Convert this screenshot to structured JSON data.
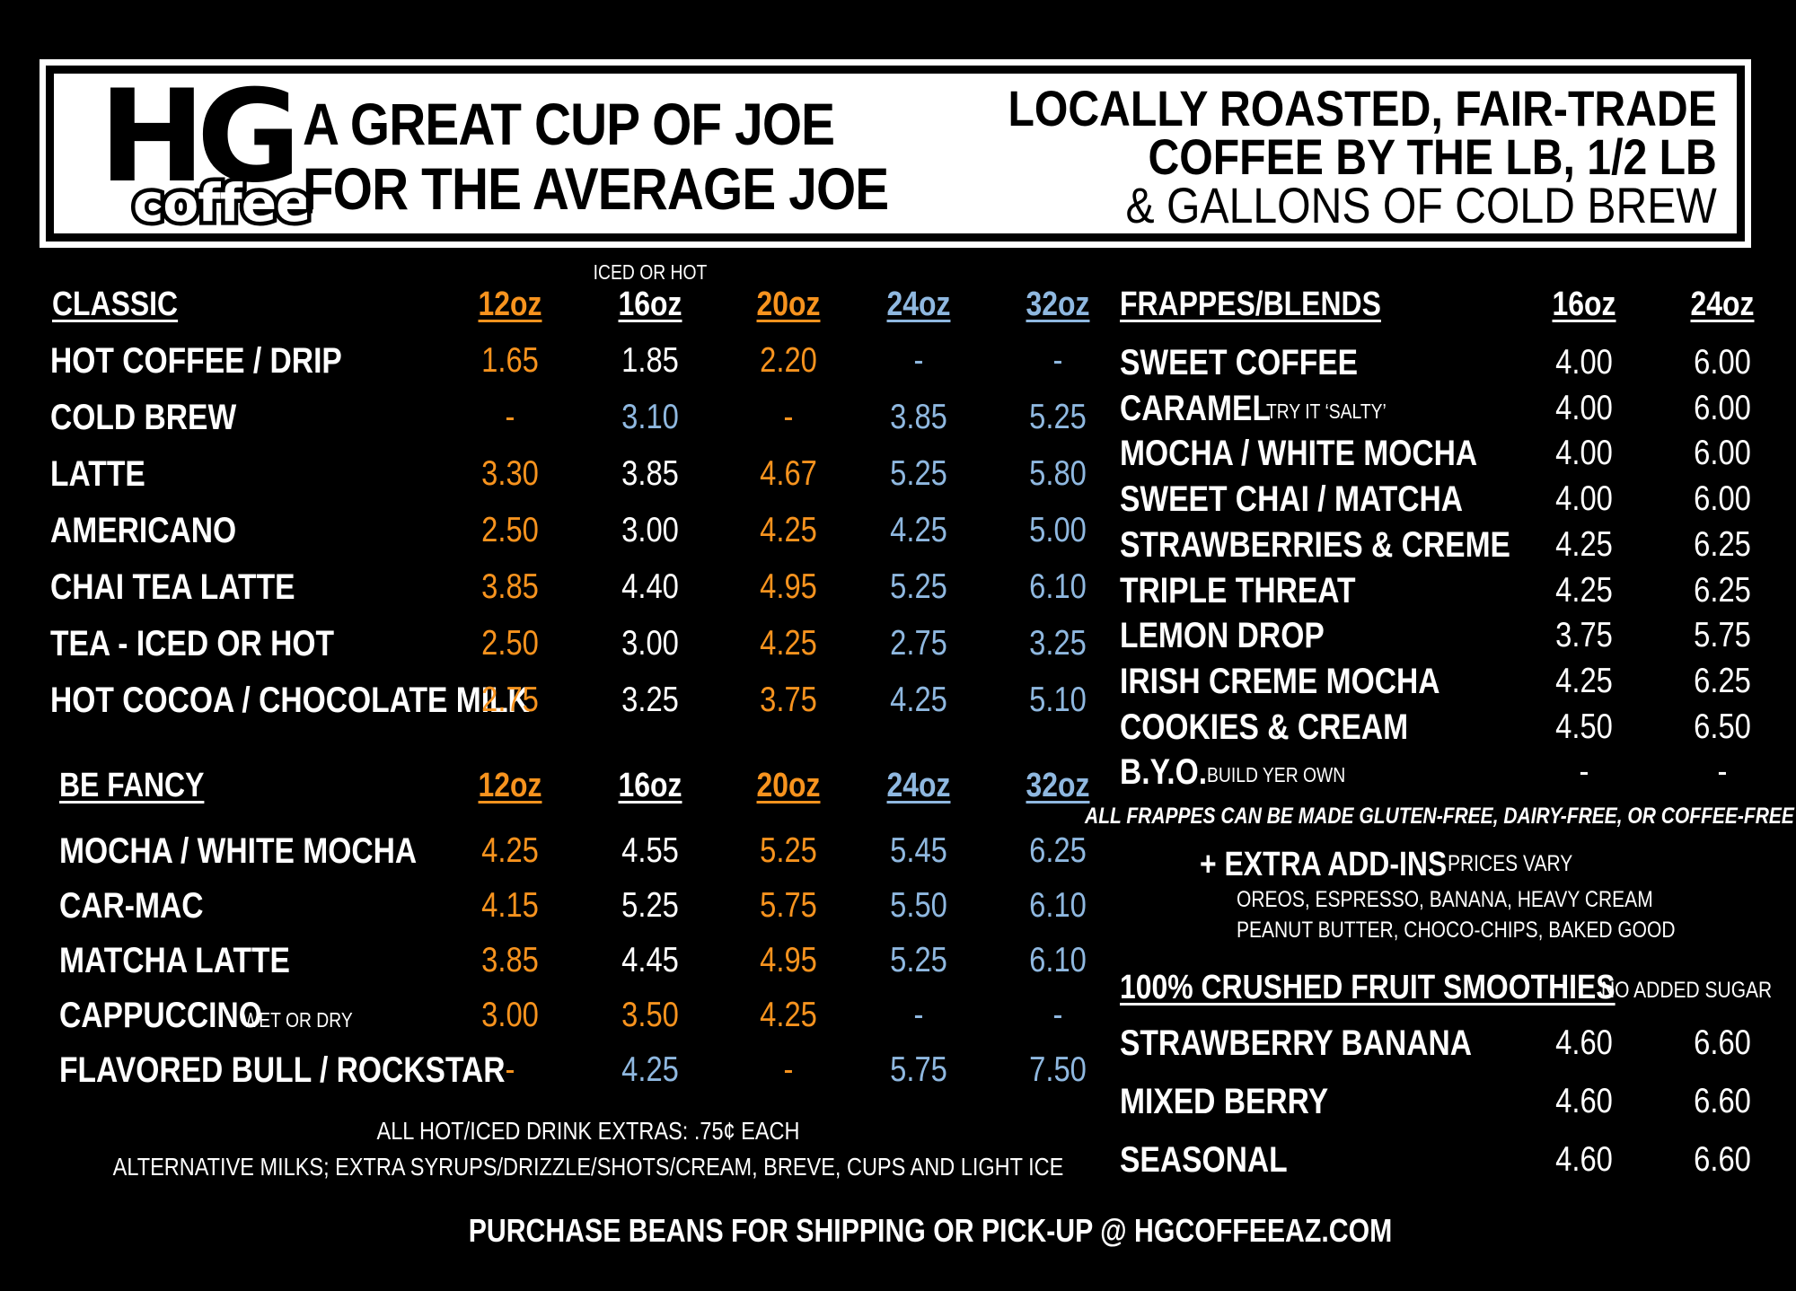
{
  "header": {
    "logo_top": "HG",
    "logo_bottom": "coffee",
    "tagline": [
      "A GREAT CUP OF JOE",
      "FOR THE AVERAGE JOE"
    ],
    "right": [
      "LOCALLY ROASTED, FAIR-TRADE",
      "COFFEE BY THE LB, 1/2 LB",
      "& GALLONS OF COLD BREW"
    ]
  },
  "classic": {
    "title": "CLASSIC",
    "note_above": "ICED OR HOT",
    "sizes": [
      "12oz",
      "16oz",
      "20oz",
      "24oz",
      "32oz"
    ],
    "size_colors": [
      "#f7931e",
      "#ffffff",
      "#f7931e",
      "#8fb8e0",
      "#8fb8e0"
    ],
    "rows": [
      {
        "name": "HOT COFFEE / DRIP",
        "prices": [
          "1.65",
          "1.85",
          "2.20",
          "-",
          "-"
        ]
      },
      {
        "name": "COLD BREW",
        "prices": [
          "-",
          "3.10",
          "-",
          "3.85",
          "5.25"
        ]
      },
      {
        "name": "LATTE",
        "prices": [
          "3.30",
          "3.85",
          "4.67",
          "5.25",
          "5.80"
        ]
      },
      {
        "name": "AMERICANO",
        "prices": [
          "2.50",
          "3.00",
          "4.25",
          "4.25",
          "5.00"
        ]
      },
      {
        "name": "CHAI TEA LATTE",
        "prices": [
          "3.85",
          "4.40",
          "4.95",
          "5.25",
          "6.10"
        ]
      },
      {
        "name": "TEA - ICED OR HOT",
        "prices": [
          "2.50",
          "3.00",
          "4.25",
          "2.75",
          "3.25"
        ]
      },
      {
        "name": "HOT COCOA / CHOCOLATE MILK",
        "prices": [
          "2.75",
          "3.25",
          "3.75",
          "4.25",
          "5.10"
        ]
      }
    ]
  },
  "fancy": {
    "title": "BE FANCY",
    "sizes": [
      "12oz",
      "16oz",
      "20oz",
      "24oz",
      "32oz"
    ],
    "rows": [
      {
        "name": "MOCHA / WHITE MOCHA",
        "note": "",
        "prices": [
          "4.25",
          "4.55",
          "5.25",
          "5.45",
          "6.25"
        ]
      },
      {
        "name": "CAR-MAC",
        "note": "",
        "prices": [
          "4.15",
          "5.25",
          "5.75",
          "5.50",
          "6.10"
        ]
      },
      {
        "name": "MATCHA LATTE",
        "note": "",
        "prices": [
          "3.85",
          "4.45",
          "4.95",
          "5.25",
          "6.10"
        ]
      },
      {
        "name": "CAPPUCCINO",
        "note": "WET OR DRY",
        "prices": [
          "3.00",
          "3.50",
          "4.25",
          "-",
          "-"
        ]
      },
      {
        "name": "FLAVORED BULL / ROCKSTAR",
        "note": "",
        "prices": [
          "-",
          "4.25",
          "-",
          "5.75",
          "7.50"
        ]
      }
    ]
  },
  "extras": {
    "line1": "ALL HOT/ICED DRINK EXTRAS: .75¢ EACH",
    "line2": "ALTERNATIVE MILKS; EXTRA SYRUPS/DRIZZLE/SHOTS/CREAM, BREVE, CUPS AND LIGHT ICE"
  },
  "frappes": {
    "title": "FRAPPES/BLENDS",
    "sizes": [
      "16oz",
      "24oz"
    ],
    "rows": [
      {
        "name": "SWEET COFFEE",
        "note": "",
        "prices": [
          "4.00",
          "6.00"
        ]
      },
      {
        "name": "CARAMEL",
        "note": "TRY IT ‘SALTY’",
        "prices": [
          "4.00",
          "6.00"
        ]
      },
      {
        "name": "MOCHA / WHITE MOCHA",
        "note": "",
        "prices": [
          "4.00",
          "6.00"
        ]
      },
      {
        "name": "SWEET CHAI / MATCHA",
        "note": "",
        "prices": [
          "4.00",
          "6.00"
        ]
      },
      {
        "name": "STRAWBERRIES & CREME",
        "note": "",
        "prices": [
          "4.25",
          "6.25"
        ]
      },
      {
        "name": "TRIPLE THREAT",
        "note": "",
        "prices": [
          "4.25",
          "6.25"
        ]
      },
      {
        "name": "LEMON DROP",
        "note": "",
        "prices": [
          "3.75",
          "5.75"
        ]
      },
      {
        "name": "IRISH CREME MOCHA",
        "note": "",
        "prices": [
          "4.25",
          "6.25"
        ]
      },
      {
        "name": "COOKIES & CREAM",
        "note": "",
        "prices": [
          "4.50",
          "6.50"
        ]
      },
      {
        "name": "B.Y.O.",
        "note": "BUILD YER OWN",
        "prices": [
          "-",
          "-"
        ]
      }
    ],
    "footnote": "ALL FRAPPES CAN BE MADE GLUTEN-FREE, DAIRY-FREE, OR COFFEE-FREE",
    "addins_title": "+ EXTRA ADD-INS",
    "addins_note": "PRICES VARY",
    "addins_lines": [
      "OREOS, ESPRESSO, BANANA, HEAVY CREAM",
      "PEANUT BUTTER, CHOCO-CHIPS, BAKED GOOD"
    ]
  },
  "smoothies": {
    "title": "100% CRUSHED FRUIT SMOOTHIES",
    "note": "NO ADDED SUGAR",
    "rows": [
      {
        "name": "STRAWBERRY BANANA",
        "prices": [
          "4.60",
          "6.60"
        ]
      },
      {
        "name": "MIXED BERRY",
        "prices": [
          "4.60",
          "6.60"
        ]
      },
      {
        "name": "SEASONAL",
        "prices": [
          "4.60",
          "6.60"
        ]
      }
    ]
  },
  "footer": "PURCHASE BEANS FOR SHIPPING OR PICK-UP @ HGCOFFEEAZ.COM",
  "colors": {
    "orange": "#f7931e",
    "blue": "#8fb8e0",
    "white": "#ffffff",
    "background": "#000000"
  }
}
